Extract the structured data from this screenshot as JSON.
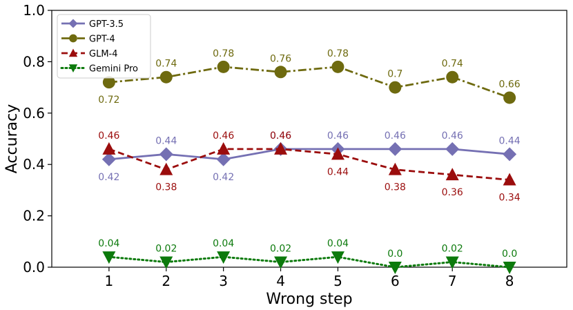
{
  "chart_data": {
    "type": "line",
    "xlabel": "Wrong step",
    "ylabel": "Accuracy",
    "x": [
      1,
      2,
      3,
      4,
      5,
      6,
      7,
      8
    ],
    "x_tick_labels": [
      "1",
      "2",
      "3",
      "4",
      "5",
      "6",
      "7",
      "8"
    ],
    "xlim": [
      0,
      9
    ],
    "ylim": [
      0.0,
      1.0
    ],
    "y_ticks": [
      0.0,
      0.2,
      0.4,
      0.6,
      0.8,
      1.0
    ],
    "y_tick_labels": [
      "0.0",
      "0.2",
      "0.4",
      "0.6",
      "0.8",
      "1.0"
    ],
    "grid": false,
    "legend_position": "top-left",
    "series": [
      {
        "name": "GPT-3.5",
        "values": [
          0.42,
          0.44,
          0.42,
          0.46,
          0.46,
          0.46,
          0.46,
          0.44
        ],
        "labels": [
          "0.42",
          "0.44",
          "0.42",
          "0.46",
          "0.46",
          "0.46",
          "0.46",
          "0.44"
        ],
        "label_side": [
          "below",
          "above",
          "below",
          "above",
          "above",
          "above",
          "above",
          "above"
        ],
        "color": "#7570b3",
        "line_style": "solid",
        "marker": "diamond"
      },
      {
        "name": "GPT-4",
        "values": [
          0.72,
          0.74,
          0.78,
          0.76,
          0.78,
          0.7,
          0.74,
          0.66
        ],
        "labels": [
          "0.72",
          "0.74",
          "0.78",
          "0.76",
          "0.78",
          "0.7",
          "0.74",
          "0.66"
        ],
        "label_side": [
          "below",
          "above",
          "above",
          "above",
          "above",
          "above",
          "above",
          "above"
        ],
        "color": "#6e6a0f",
        "line_style": "dashdot",
        "marker": "circle"
      },
      {
        "name": "GLM-4",
        "values": [
          0.46,
          0.38,
          0.46,
          0.46,
          0.44,
          0.38,
          0.36,
          0.34
        ],
        "labels": [
          "0.46",
          "0.38",
          "0.46",
          "0.46",
          "0.44",
          "0.38",
          "0.36",
          "0.34"
        ],
        "label_side": [
          "above",
          "below",
          "above",
          "above",
          "below",
          "below",
          "below",
          "below"
        ],
        "color": "#9b0d0d",
        "line_style": "dashed",
        "marker": "triangle-up"
      },
      {
        "name": "Gemini Pro",
        "values": [
          0.04,
          0.02,
          0.04,
          0.02,
          0.04,
          0.0,
          0.02,
          0.0
        ],
        "labels": [
          "0.04",
          "0.02",
          "0.04",
          "0.02",
          "0.04",
          "0.0",
          "0.02",
          "0.0"
        ],
        "label_side": [
          "above",
          "above",
          "above",
          "above",
          "above",
          "above",
          "above",
          "above"
        ],
        "color": "#0c7a0c",
        "line_style": "dotted",
        "marker": "triangle-down"
      }
    ]
  }
}
